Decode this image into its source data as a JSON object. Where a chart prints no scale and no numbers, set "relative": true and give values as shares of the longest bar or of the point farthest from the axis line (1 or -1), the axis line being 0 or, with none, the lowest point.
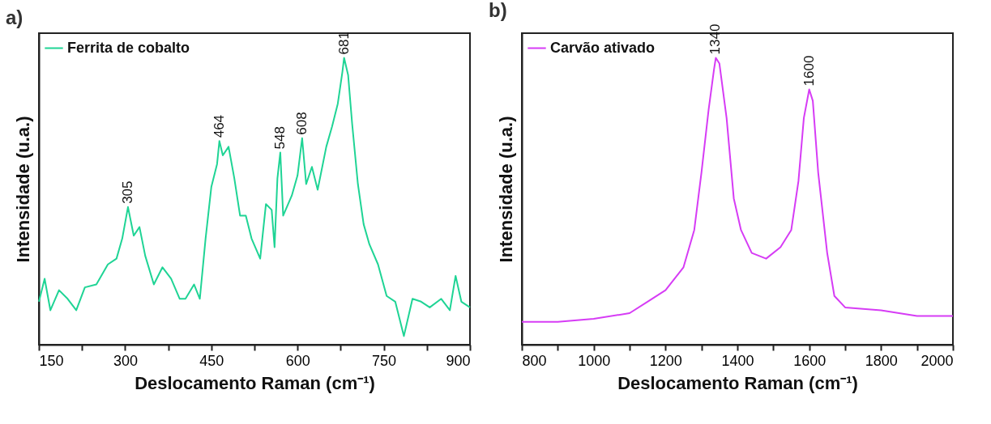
{
  "chart_data": [
    {
      "type": "line",
      "title": "a)",
      "xlabel": "Deslocamento Raman (cm⁻¹)",
      "ylabel": "Intensidade (u.a.)",
      "relative": true,
      "legend": "top left",
      "xlim": [
        150,
        900
      ],
      "xticks": [
        150,
        {
          "value": 225,
          "label": null
        },
        300,
        {
          "value": 375,
          "label": null
        },
        450,
        {
          "value": 525,
          "label": null
        },
        600,
        {
          "value": 675,
          "label": null
        },
        750,
        {
          "value": 825,
          "label": null
        },
        900
      ],
      "x": [
        150,
        160,
        170,
        185,
        200,
        215,
        230,
        250,
        270,
        285,
        295,
        305,
        315,
        325,
        335,
        350,
        365,
        380,
        395,
        405,
        420,
        430,
        440,
        450,
        460,
        464,
        470,
        480,
        490,
        500,
        510,
        520,
        535,
        545,
        555,
        560,
        565,
        570,
        575,
        590,
        600,
        608,
        615,
        625,
        635,
        650,
        660,
        670,
        678,
        681,
        688,
        695,
        705,
        715,
        725,
        740,
        755,
        770,
        785,
        800,
        815,
        830,
        850,
        865,
        875,
        885,
        900
      ],
      "series": [
        {
          "name": "Ferrita de cobalto",
          "color": "#1fd495",
          "values": [
            0.15,
            0.23,
            0.12,
            0.19,
            0.16,
            0.12,
            0.2,
            0.21,
            0.28,
            0.3,
            0.37,
            0.48,
            0.38,
            0.41,
            0.31,
            0.21,
            0.27,
            0.23,
            0.16,
            0.16,
            0.21,
            0.16,
            0.37,
            0.55,
            0.63,
            0.71,
            0.66,
            0.69,
            0.58,
            0.45,
            0.45,
            0.37,
            0.3,
            0.49,
            0.47,
            0.34,
            0.58,
            0.67,
            0.45,
            0.52,
            0.59,
            0.72,
            0.56,
            0.62,
            0.54,
            0.69,
            0.76,
            0.84,
            0.95,
            1,
            0.94,
            0.77,
            0.56,
            0.42,
            0.35,
            0.28,
            0.17,
            0.15,
            0.03,
            0.16,
            0.15,
            0.13,
            0.16,
            0.12,
            0.24,
            0.15,
            0.13
          ]
        }
      ],
      "annotations": [
        {
          "text": "305",
          "x": 305,
          "y": 0.48
        },
        {
          "text": "464",
          "x": 464,
          "y": 0.71
        },
        {
          "text": "548",
          "x": 570,
          "y": 0.67
        },
        {
          "text": "608",
          "x": 608,
          "y": 0.72
        },
        {
          "text": "681",
          "x": 681,
          "y": 1
        }
      ]
    },
    {
      "type": "line",
      "title": "b)",
      "xlabel": "Deslocamento Raman (cm⁻¹)",
      "ylabel": "Intensidade (u.a.)",
      "relative": true,
      "legend": "top left",
      "xlim": [
        800,
        2000
      ],
      "xticks": [
        800,
        {
          "value": 900,
          "label": null
        },
        1000,
        {
          "value": 1100,
          "label": null
        },
        1200,
        {
          "value": 1300,
          "label": null
        },
        1400,
        {
          "value": 1500,
          "label": null
        },
        1600,
        {
          "value": 1700,
          "label": null
        },
        1800,
        {
          "value": 1900,
          "label": null
        },
        2000
      ],
      "x": [
        800,
        900,
        1000,
        1100,
        1150,
        1200,
        1250,
        1280,
        1300,
        1320,
        1335,
        1340,
        1350,
        1370,
        1390,
        1410,
        1440,
        1480,
        1520,
        1550,
        1570,
        1585,
        1600,
        1610,
        1625,
        1650,
        1670,
        1700,
        1800,
        1900,
        2000
      ],
      "series": [
        {
          "name": "Carvão ativado",
          "color": "#d63cf5",
          "values": [
            0.08,
            0.08,
            0.09,
            0.11,
            0.15,
            0.19,
            0.27,
            0.4,
            0.6,
            0.82,
            0.96,
            1,
            0.98,
            0.79,
            0.51,
            0.4,
            0.32,
            0.3,
            0.34,
            0.4,
            0.57,
            0.79,
            0.89,
            0.85,
            0.6,
            0.32,
            0.17,
            0.13,
            0.12,
            0.1,
            0.1
          ]
        }
      ],
      "annotations": [
        {
          "text": "1340",
          "x": 1340,
          "y": 1
        },
        {
          "text": "1600",
          "x": 1600,
          "y": 0.89
        }
      ]
    }
  ]
}
